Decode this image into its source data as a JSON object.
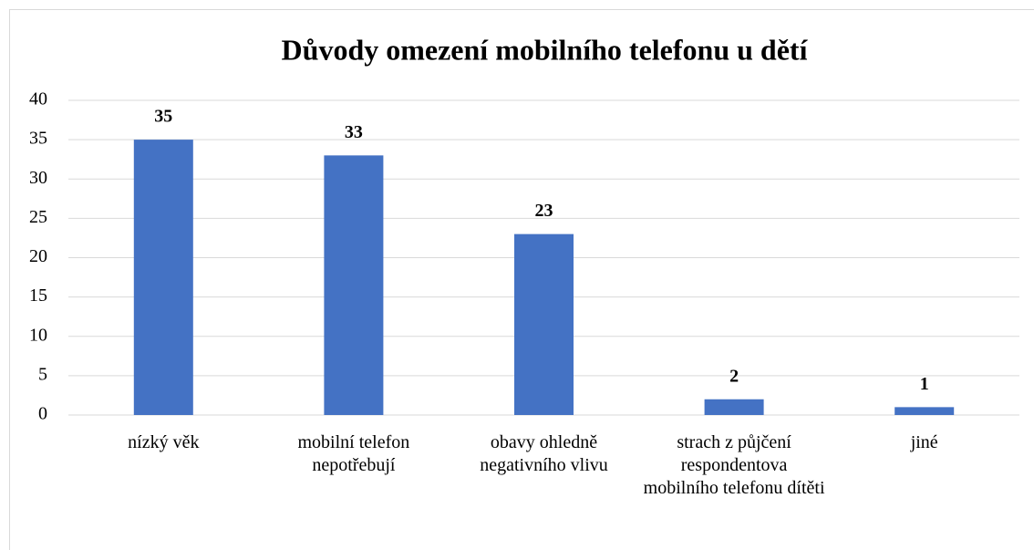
{
  "chart_data": {
    "type": "bar",
    "title": "Důvody omezení mobilního telefonu u dětí",
    "categories": [
      "nízký věk",
      "mobilní telefon nepotřebují",
      "obavy ohledně negativního vlivu",
      "strach z půjčení respondentova mobilního telefonu dítěti",
      "jiné"
    ],
    "values": [
      35,
      33,
      23,
      2,
      1
    ],
    "color": "#4472c4",
    "ylim": [
      0,
      40
    ],
    "yticks": [
      0,
      5,
      10,
      15,
      20,
      25,
      30,
      35,
      40
    ],
    "grid": true
  }
}
